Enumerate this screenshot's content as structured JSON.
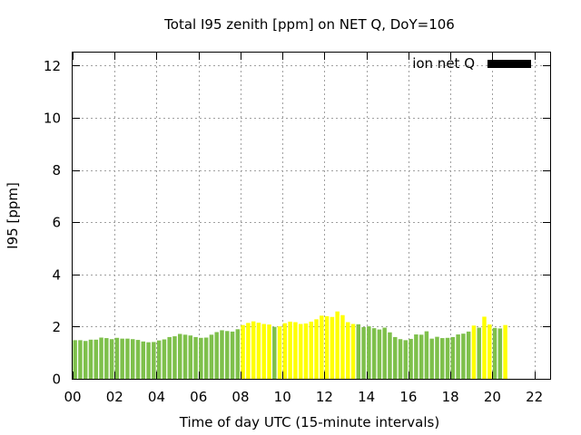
{
  "chart_data": {
    "type": "bar",
    "title": "Total I95 zenith [ppm] on NET Q, DoY=106",
    "xlabel": "Time of day UTC (15-minute intervals)",
    "ylabel": "I95 [ppm]",
    "xlim": [
      0,
      22.75
    ],
    "ylim": [
      0,
      12.5
    ],
    "x_ticks": [
      "00",
      "02",
      "04",
      "06",
      "08",
      "10",
      "12",
      "14",
      "16",
      "18",
      "20",
      "22"
    ],
    "y_ticks": [
      "0",
      "2",
      "4",
      "6",
      "8",
      "10",
      "12"
    ],
    "grid": true,
    "legend": {
      "position": "top-right",
      "label": "ion net Q",
      "color": "#000000"
    },
    "colors": {
      "quiet": "#7ec04b",
      "elevated": "#ffff00",
      "legend": "#000000"
    },
    "interval_hours": 0.25,
    "values": [
      1.48,
      1.48,
      1.45,
      1.5,
      1.5,
      1.58,
      1.56,
      1.52,
      1.57,
      1.54,
      1.54,
      1.52,
      1.49,
      1.43,
      1.4,
      1.41,
      1.47,
      1.51,
      1.6,
      1.63,
      1.72,
      1.69,
      1.66,
      1.6,
      1.57,
      1.58,
      1.69,
      1.79,
      1.86,
      1.83,
      1.81,
      1.9,
      2.06,
      2.14,
      2.2,
      2.15,
      2.1,
      2.08,
      1.99,
      2.01,
      2.13,
      2.19,
      2.17,
      2.1,
      2.12,
      2.19,
      2.28,
      2.42,
      2.4,
      2.37,
      2.58,
      2.44,
      2.17,
      2.1,
      2.09,
      1.98,
      2.01,
      1.94,
      1.89,
      1.96,
      1.78,
      1.6,
      1.52,
      1.48,
      1.53,
      1.7,
      1.69,
      1.82,
      1.54,
      1.61,
      1.56,
      1.57,
      1.6,
      1.7,
      1.73,
      1.81,
      2.04,
      1.96,
      2.38,
      2.08,
      1.95,
      1.93,
      2.06
    ],
    "categories": [
      "quiet",
      "quiet",
      "quiet",
      "quiet",
      "quiet",
      "quiet",
      "quiet",
      "quiet",
      "quiet",
      "quiet",
      "quiet",
      "quiet",
      "quiet",
      "quiet",
      "quiet",
      "quiet",
      "quiet",
      "quiet",
      "quiet",
      "quiet",
      "quiet",
      "quiet",
      "quiet",
      "quiet",
      "quiet",
      "quiet",
      "quiet",
      "quiet",
      "quiet",
      "quiet",
      "quiet",
      "quiet",
      "elevated",
      "elevated",
      "elevated",
      "elevated",
      "elevated",
      "elevated",
      "quiet",
      "elevated",
      "elevated",
      "elevated",
      "elevated",
      "elevated",
      "elevated",
      "elevated",
      "elevated",
      "elevated",
      "elevated",
      "elevated",
      "elevated",
      "elevated",
      "elevated",
      "elevated",
      "quiet",
      "quiet",
      "quiet",
      "quiet",
      "quiet",
      "quiet",
      "quiet",
      "quiet",
      "quiet",
      "quiet",
      "quiet",
      "quiet",
      "quiet",
      "quiet",
      "quiet",
      "quiet",
      "quiet",
      "quiet",
      "quiet",
      "quiet",
      "quiet",
      "quiet",
      "elevated",
      "quiet",
      "elevated",
      "elevated",
      "quiet",
      "quiet",
      "elevated"
    ]
  }
}
